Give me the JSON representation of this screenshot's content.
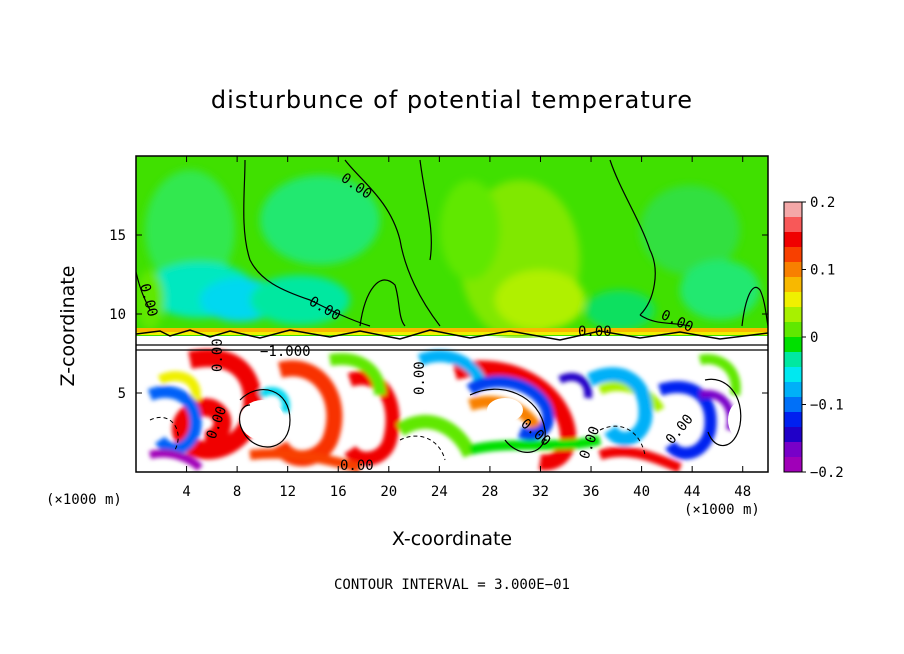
{
  "chart_data": {
    "type": "heatmap",
    "title": "disturbunce of potential temperature",
    "xlabel": "X-coordinate",
    "ylabel": "Z-coordinate",
    "x_unit": "(×1000 m)",
    "y_unit": "(×1000 m)",
    "xlim": [
      0,
      50
    ],
    "ylim": [
      0,
      20
    ],
    "x_ticks": [
      4,
      8,
      12,
      16,
      20,
      24,
      28,
      32,
      36,
      40,
      44,
      48
    ],
    "y_ticks": [
      5,
      10,
      15
    ],
    "colorbar": {
      "range": [
        -0.2,
        0.2
      ],
      "tick_values": [
        0.2,
        0.1,
        0,
        -0.1,
        -0.2
      ],
      "tick_labels": [
        "0.2",
        "0.1",
        "0",
        "−0.1",
        "−0.2"
      ],
      "colors": [
        "#f4a8a8",
        "#f85858",
        "#f00000",
        "#f84000",
        "#f88000",
        "#f8b800",
        "#f0f000",
        "#a8f000",
        "#60e800",
        "#00e000",
        "#00e8a0",
        "#00e8f0",
        "#00b0f8",
        "#0070f8",
        "#0020f0",
        "#2000c8",
        "#7800c8",
        "#a000b8"
      ]
    },
    "contour_labels": [
      "0.00",
      "0.00",
      "0.00",
      "0.00",
      "0.00",
      "−1.000",
      "0.00",
      "0.00",
      "0.00",
      "0.00",
      "0.00",
      "0.00",
      "0.00"
    ],
    "contour_interval_text": "CONTOUR INTERVAL = 3.000E−01"
  }
}
